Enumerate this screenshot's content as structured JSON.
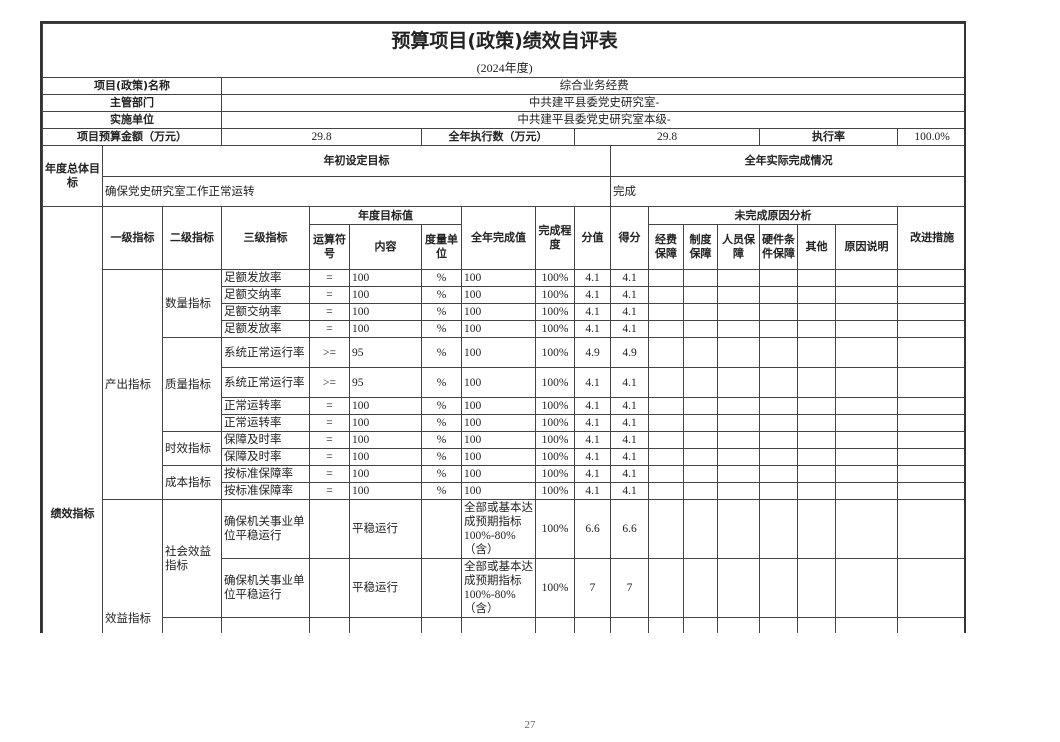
{
  "title": "预算项目(政策)绩效自评表",
  "subtitle": "(2024年度)",
  "info": {
    "project_name_label": "项目(政策)名称",
    "project_name": "综合业务经费",
    "dept_label": "主管部门",
    "dept": "中共建平县委党史研究室-",
    "unit_label": "实施单位",
    "unit": "中共建平县委党史研究室本级-",
    "budget_label": "项目预算金额（万元）",
    "budget": "29.8",
    "executed_label": "全年执行数（万元）",
    "executed": "29.8",
    "rate_label": "执行率",
    "rate": "100.0%"
  },
  "goals": {
    "label": "年度总体目标",
    "planned_label": "年初设定目标",
    "planned": "确保党史研究室工作正常运转",
    "actual_label": "全年实际完成情况",
    "actual": "完成"
  },
  "headers": {
    "section": "绩效指标",
    "level1": "一级指标",
    "level2": "二级指标",
    "level3": "三级指标",
    "target_group": "年度目标值",
    "op": "运算符号",
    "content": "内容",
    "unit": "度量单位",
    "actual": "全年完成值",
    "completion": "完成程度",
    "weight": "分值",
    "score": "得分",
    "reason_group": "未完成原因分析",
    "funds": "经费保障",
    "system": "制度保障",
    "staff": "人员保障",
    "hardware": "硬件条件保障",
    "other": "其他",
    "explain": "原因说明",
    "improve": "改进措施"
  },
  "indicators": [
    {
      "name": "产出指标",
      "groups": [
        {
          "name": "数量指标",
          "rows": [
            {
              "level3": "足额发放率",
              "op": "=",
              "content": "100",
              "unit": "%",
              "actual": "100",
              "completion": "100%",
              "weight": "4.1",
              "score": "4.1"
            },
            {
              "level3": "足额交纳率",
              "op": "=",
              "content": "100",
              "unit": "%",
              "actual": "100",
              "completion": "100%",
              "weight": "4.1",
              "score": "4.1"
            },
            {
              "level3": "足额交纳率",
              "op": "=",
              "content": "100",
              "unit": "%",
              "actual": "100",
              "completion": "100%",
              "weight": "4.1",
              "score": "4.1"
            },
            {
              "level3": "足额发放率",
              "op": "=",
              "content": "100",
              "unit": "%",
              "actual": "100",
              "completion": "100%",
              "weight": "4.1",
              "score": "4.1"
            }
          ]
        },
        {
          "name": "质量指标",
          "rows": [
            {
              "level3": "系统正常运行率",
              "op": ">=",
              "content": "95",
              "unit": "%",
              "actual": "100",
              "completion": "100%",
              "weight": "4.9",
              "score": "4.9"
            },
            {
              "level3": "系统正常运行率",
              "op": ">=",
              "content": "95",
              "unit": "%",
              "actual": "100",
              "completion": "100%",
              "weight": "4.1",
              "score": "4.1"
            },
            {
              "level3": "正常运转率",
              "op": "=",
              "content": "100",
              "unit": "%",
              "actual": "100",
              "completion": "100%",
              "weight": "4.1",
              "score": "4.1"
            },
            {
              "level3": "正常运转率",
              "op": "=",
              "content": "100",
              "unit": "%",
              "actual": "100",
              "completion": "100%",
              "weight": "4.1",
              "score": "4.1"
            }
          ]
        },
        {
          "name": "时效指标",
          "rows": [
            {
              "level3": "保障及时率",
              "op": "=",
              "content": "100",
              "unit": "%",
              "actual": "100",
              "completion": "100%",
              "weight": "4.1",
              "score": "4.1"
            },
            {
              "level3": "保障及时率",
              "op": "=",
              "content": "100",
              "unit": "%",
              "actual": "100",
              "completion": "100%",
              "weight": "4.1",
              "score": "4.1"
            }
          ]
        },
        {
          "name": "成本指标",
          "rows": [
            {
              "level3": "按标准保障率",
              "op": "=",
              "content": "100",
              "unit": "%",
              "actual": "100",
              "completion": "100%",
              "weight": "4.1",
              "score": "4.1"
            },
            {
              "level3": "按标准保障率",
              "op": "=",
              "content": "100",
              "unit": "%",
              "actual": "100",
              "completion": "100%",
              "weight": "4.1",
              "score": "4.1"
            }
          ]
        }
      ]
    },
    {
      "name": "效益指标",
      "groups": [
        {
          "name": "社会效益指标",
          "rows": [
            {
              "level3": "确保机关事业单位平稳运行",
              "op": "",
              "content": "平稳运行",
              "unit": "",
              "actual": "全部或基本达成预期指标100%-80%（含）",
              "completion": "100%",
              "weight": "6.6",
              "score": "6.6"
            },
            {
              "level3": "确保机关事业单位平稳运行",
              "op": "",
              "content": "平稳运行",
              "unit": "",
              "actual": "全部或基本达成预期指标100%-80%（含）",
              "completion": "100%",
              "weight": "7",
              "score": "7"
            }
          ]
        }
      ]
    }
  ],
  "page_number": "27"
}
